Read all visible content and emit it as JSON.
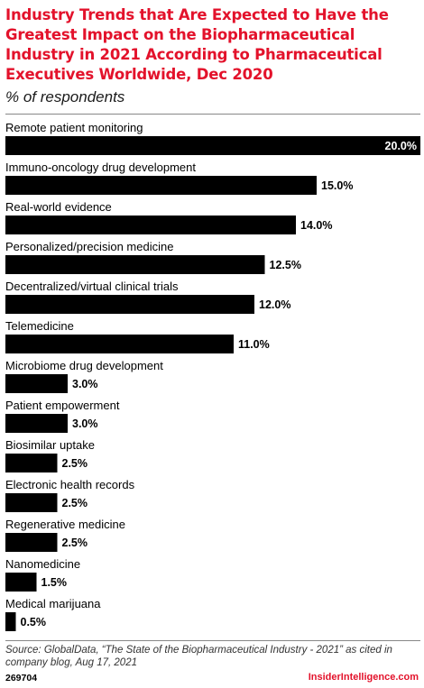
{
  "header": {
    "title": "Industry Trends that Are Expected to Have the Greatest Impact on the Biopharmaceutical Industry in 2021 According to Pharmaceutical Executives Worldwide, Dec 2020",
    "subtitle": "% of respondents"
  },
  "chart_data": {
    "type": "bar",
    "orientation": "horizontal",
    "title": "Industry Trends that Are Expected to Have the Greatest Impact on the Biopharmaceutical Industry in 2021 According to Pharmaceutical Executives Worldwide, Dec 2020",
    "subtitle": "% of respondents",
    "categories": [
      "Remote patient monitoring",
      "Immuno-oncology drug development",
      "Real-world evidence",
      "Personalized/precision medicine",
      "Decentralized/virtual clinical trials",
      "Telemedicine",
      "Microbiome drug development",
      "Patient empowerment",
      "Biosimilar uptake",
      "Electronic health records",
      "Regenerative medicine",
      "Nanomedicine",
      "Medical marijuana"
    ],
    "values": [
      20.0,
      15.0,
      14.0,
      12.5,
      12.0,
      11.0,
      3.0,
      3.0,
      2.5,
      2.5,
      2.5,
      1.5,
      0.5
    ],
    "value_labels": [
      "20.0%",
      "15.0%",
      "14.0%",
      "12.5%",
      "12.0%",
      "11.0%",
      "3.0%",
      "3.0%",
      "2.5%",
      "2.5%",
      "2.5%",
      "1.5%",
      "0.5%"
    ],
    "xlim": [
      0,
      20
    ],
    "grid": false,
    "bar_color": "#000000"
  },
  "footer": {
    "source": "Source: GlobalData, “The State of the Biopharmaceutical Industry - 2021” as cited in company blog, Aug 17, 2021",
    "id": "269704",
    "brand": "InsiderIntelligence.com"
  },
  "colors": {
    "title": "#e3122b",
    "brand": "#e3122b",
    "bars": "#000000"
  }
}
